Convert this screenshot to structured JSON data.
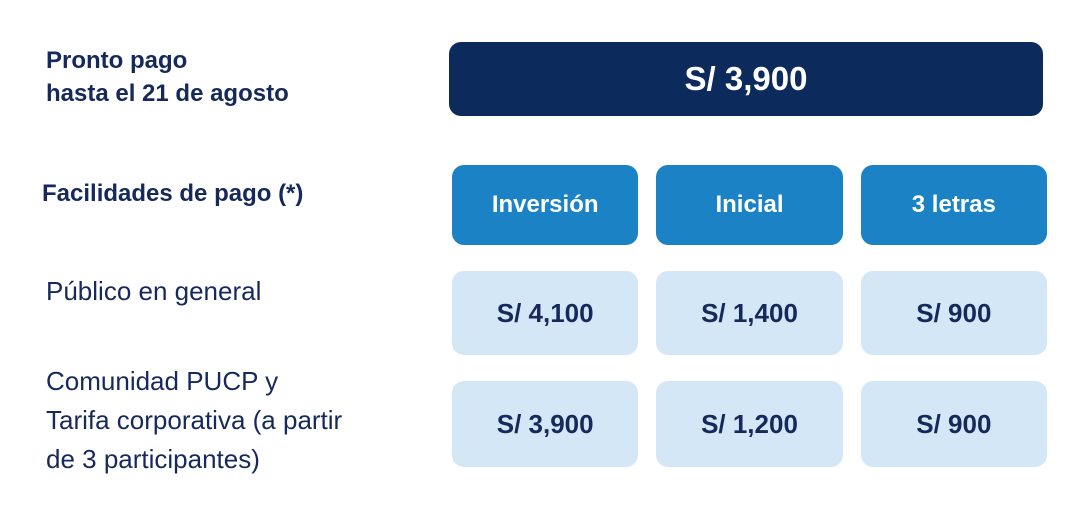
{
  "colors": {
    "navy": "#0c2a5c",
    "navy_text": "#16295b",
    "blue": "#1a82c5",
    "light_blue": "#d4e7f6",
    "background": "#ffffff"
  },
  "pronto_pago": {
    "label": "Pronto pago\nhasta el 21 de agosto",
    "price": "S/ 3,900"
  },
  "facilidades": {
    "label": "Facilidades de pago (*)",
    "columns": [
      "Inversión",
      "Inicial",
      "3 letras"
    ],
    "rows": [
      {
        "label": "Público en general",
        "values": [
          "S/ 4,100",
          "S/ 1,400",
          "S/ 900"
        ]
      },
      {
        "label": "Comunidad PUCP y\nTarifa corporativa (a partir\nde 3 participantes)",
        "values": [
          "S/ 3,900",
          "S/ 1,200",
          "S/ 900"
        ]
      }
    ]
  },
  "chart_data": {
    "type": "table",
    "title": "",
    "currency": "S/",
    "columns": [
      "",
      "Inversión",
      "Inicial",
      "3 letras"
    ],
    "rows": [
      [
        "Pronto pago hasta el 21 de agosto",
        "S/ 3,900",
        "",
        ""
      ],
      [
        "Público en general",
        "S/ 4,100",
        "S/ 1,400",
        "S/ 900"
      ],
      [
        "Comunidad PUCP y Tarifa corporativa (a partir de 3 participantes)",
        "S/ 3,900",
        "S/ 1,200",
        "S/ 900"
      ]
    ],
    "numeric": {
      "pronto_pago_hasta_21_agosto": 3900,
      "publico_en_general": {
        "inversion": 4100,
        "inicial": 1400,
        "tres_letras": 900
      },
      "comunidad_pucp_y_tarifa_corporativa": {
        "inversion": 3900,
        "inicial": 1200,
        "tres_letras": 900
      }
    }
  }
}
